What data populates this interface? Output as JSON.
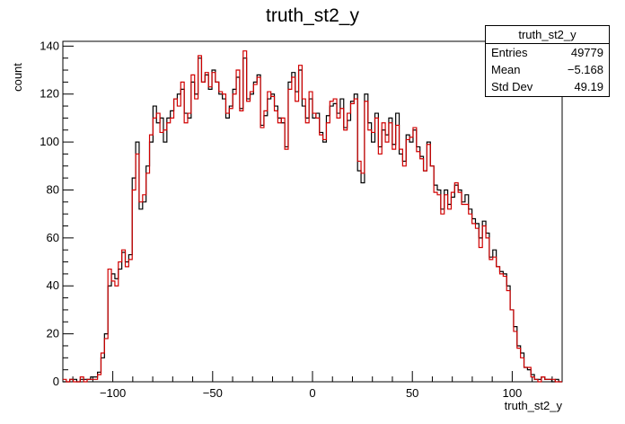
{
  "chart_data": {
    "type": "histogram",
    "title": "truth_st2_y",
    "xlabel": "truth_st2_y",
    "ylabel": "count",
    "xlim": [
      -125,
      125
    ],
    "ylim": [
      0,
      142
    ],
    "x_ticks": [
      -100,
      -50,
      0,
      50,
      100
    ],
    "y_ticks": [
      0,
      20,
      40,
      60,
      80,
      100,
      120,
      140
    ],
    "bin_edges_range": [
      -125,
      125
    ],
    "series": [
      {
        "color": "#000000",
        "values": [
          0,
          0,
          1,
          1,
          0,
          1,
          1,
          1,
          2,
          2,
          4,
          10,
          20,
          40,
          45,
          43,
          47,
          54,
          50,
          53,
          85,
          100,
          72,
          75,
          90,
          100,
          115,
          108,
          110,
          100,
          110,
          113,
          118,
          120,
          122,
          112,
          110,
          125,
          120,
          135,
          125,
          128,
          122,
          130,
          125,
          120,
          118,
          110,
          115,
          122,
          127,
          114,
          135,
          118,
          120,
          125,
          128,
          107,
          111,
          118,
          120,
          115,
          110,
          108,
          98,
          125,
          129,
          121,
          130,
          115,
          110,
          118,
          110,
          112,
          104,
          100,
          111,
          115,
          116,
          112,
          118,
          106,
          109,
          117,
          120,
          88,
          83,
          120,
          108,
          100,
          112,
          98,
          105,
          103,
          110,
          99,
          112,
          95,
          92,
          103,
          100,
          105,
          98,
          94,
          88,
          100,
          90,
          82,
          80,
          72,
          80,
          74,
          77,
          82,
          80,
          75,
          78,
          72,
          68,
          66,
          60,
          67,
          62,
          52,
          55,
          48,
          46,
          45,
          40,
          30,
          23,
          15,
          12,
          6,
          5,
          3,
          1,
          1,
          2,
          1,
          1,
          0,
          1,
          0
        ]
      },
      {
        "color": "#d00000",
        "values": [
          1,
          0,
          1,
          0,
          0,
          2,
          0,
          1,
          1,
          1,
          3,
          12,
          18,
          47,
          42,
          40,
          50,
          55,
          48,
          51,
          80,
          95,
          75,
          78,
          87,
          103,
          110,
          112,
          104,
          105,
          108,
          110,
          118,
          115,
          125,
          108,
          112,
          128,
          118,
          136,
          125,
          129,
          123,
          129,
          125,
          121,
          120,
          112,
          114,
          120,
          130,
          113,
          138,
          117,
          121,
          124,
          127,
          106,
          113,
          121,
          119,
          113,
          108,
          110,
          97,
          122,
          127,
          117,
          132,
          118,
          108,
          121,
          112,
          110,
          103,
          101,
          108,
          117,
          118,
          110,
          114,
          105,
          112,
          116,
          118,
          92,
          87,
          117,
          105,
          104,
          110,
          95,
          108,
          100,
          108,
          97,
          107,
          97,
          90,
          101,
          102,
          106,
          96,
          93,
          88,
          99,
          90,
          79,
          78,
          70,
          78,
          72,
          79,
          83,
          79,
          74,
          74,
          70,
          66,
          64,
          56,
          65,
          60,
          51,
          52,
          48,
          45,
          44,
          38,
          30,
          21,
          14,
          10,
          6,
          6,
          2,
          1,
          0,
          2,
          1,
          1,
          1,
          0,
          0
        ]
      }
    ],
    "stats_box": {
      "title": "truth_st2_y",
      "rows": [
        {
          "label": "Entries",
          "value": "49779"
        },
        {
          "label": "Mean",
          "value": "−5.168"
        },
        {
          "label": "Std Dev",
          "value": "49.19"
        }
      ]
    }
  }
}
